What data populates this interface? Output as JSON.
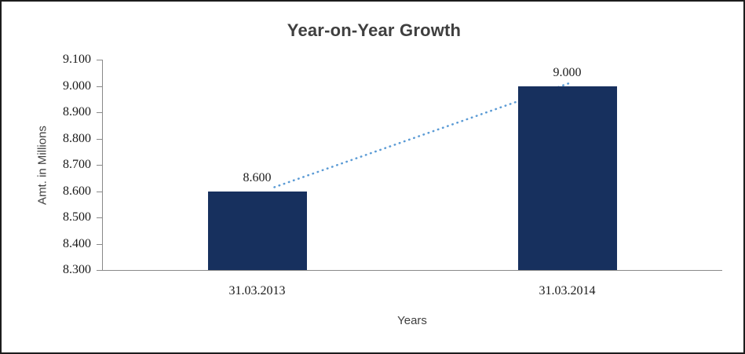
{
  "chart_data": {
    "type": "bar",
    "title": "Year-on-Year Growth",
    "xlabel": "Years",
    "ylabel": "Amt. in Millions",
    "categories": [
      "31.03.2013",
      "31.03.2014"
    ],
    "values": [
      8.6,
      9.0
    ],
    "data_labels": [
      "8.600",
      "9.000"
    ],
    "y_ticks": [
      "9.100",
      "9.000",
      "8.900",
      "8.800",
      "8.700",
      "8.600",
      "8.500",
      "8.400",
      "8.300"
    ],
    "ylim": [
      8.3,
      9.1
    ],
    "grid": false,
    "legend": "none",
    "bar_color": "#17305E",
    "trendline_color": "#5B9BD5",
    "trendline_style": "dotted"
  }
}
